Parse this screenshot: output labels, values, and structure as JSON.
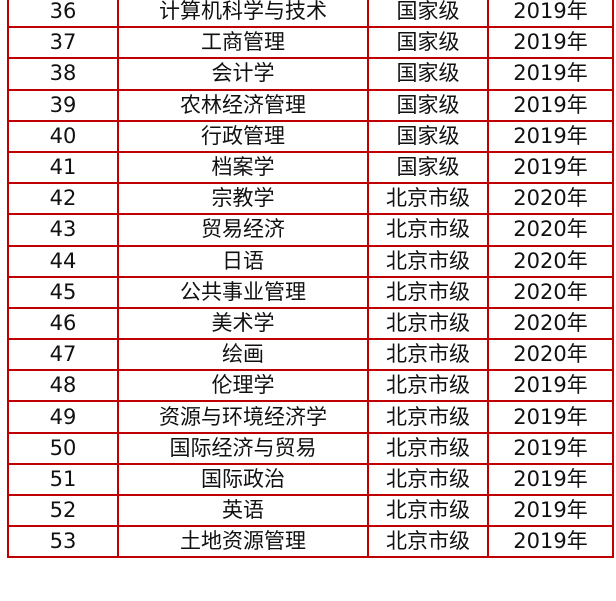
{
  "rows": [
    [
      "36",
      "计算机科学与技术",
      "国家级",
      "2019年"
    ],
    [
      "37",
      "工商管理",
      "国家级",
      "2019年"
    ],
    [
      "38",
      "会计学",
      "国家级",
      "2019年"
    ],
    [
      "39",
      "农林经济管理",
      "国家级",
      "2019年"
    ],
    [
      "40",
      "行政管理",
      "国家级",
      "2019年"
    ],
    [
      "41",
      "档案学",
      "国家级",
      "2019年"
    ],
    [
      "42",
      "宗教学",
      "北京市级",
      "2020年"
    ],
    [
      "43",
      "贸易经济",
      "北京市级",
      "2020年"
    ],
    [
      "44",
      "日语",
      "北京市级",
      "2020年"
    ],
    [
      "45",
      "公共事业管理",
      "北京市级",
      "2020年"
    ],
    [
      "46",
      "美术学",
      "北京市级",
      "2020年"
    ],
    [
      "47",
      "绘画",
      "北京市级",
      "2020年"
    ],
    [
      "48",
      "伦理学",
      "北京市级",
      "2019年"
    ],
    [
      "49",
      "资源与环境经济学",
      "北京市级",
      "2019年"
    ],
    [
      "50",
      "国际经济与贸易",
      "北京市级",
      "2019年"
    ],
    [
      "51",
      "国际政治",
      "北京市级",
      "2019年"
    ],
    [
      "52",
      "英语",
      "北京市级",
      "2019年"
    ],
    [
      "53",
      "土地资源管理",
      "北京市级",
      "2019年"
    ]
  ],
  "colors": {
    "border": "#c00000",
    "text": "#111111"
  }
}
